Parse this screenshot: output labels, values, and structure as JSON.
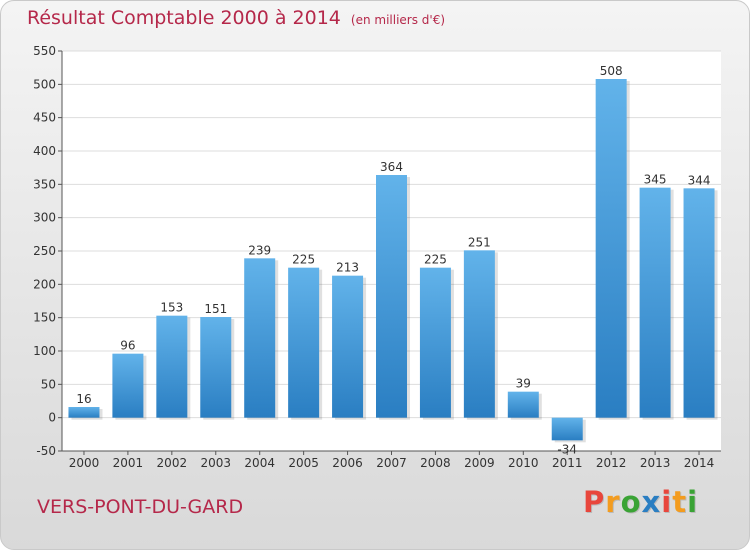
{
  "header": {
    "title": "Résultat Comptable 2000 à 2014",
    "unit_note": "(en milliers d'€)"
  },
  "footer": {
    "place_name": "VERS-PONT-DU-GARD",
    "logo_text": "Proxiti"
  },
  "colors": {
    "title": "#b5284a",
    "bar_top": "#62b3ea",
    "bar_bottom": "#2a7ec2",
    "logo": [
      "#e8463c",
      "#f39c1f",
      "#3aa335",
      "#2a7ec2",
      "#e8463c",
      "#f39c1f",
      "#3aa335"
    ]
  },
  "chart_data": {
    "type": "bar",
    "categories": [
      "2000",
      "2001",
      "2002",
      "2003",
      "2004",
      "2005",
      "2006",
      "2007",
      "2008",
      "2009",
      "2010",
      "2011",
      "2012",
      "2013",
      "2014"
    ],
    "values": [
      16,
      96,
      153,
      151,
      239,
      225,
      213,
      364,
      225,
      251,
      39,
      -34,
      508,
      345,
      344
    ],
    "ylim": [
      -50,
      550
    ],
    "yticks": [
      -50,
      0,
      50,
      100,
      150,
      200,
      250,
      300,
      350,
      400,
      450,
      500,
      550
    ],
    "grid": true,
    "legend": "none"
  }
}
